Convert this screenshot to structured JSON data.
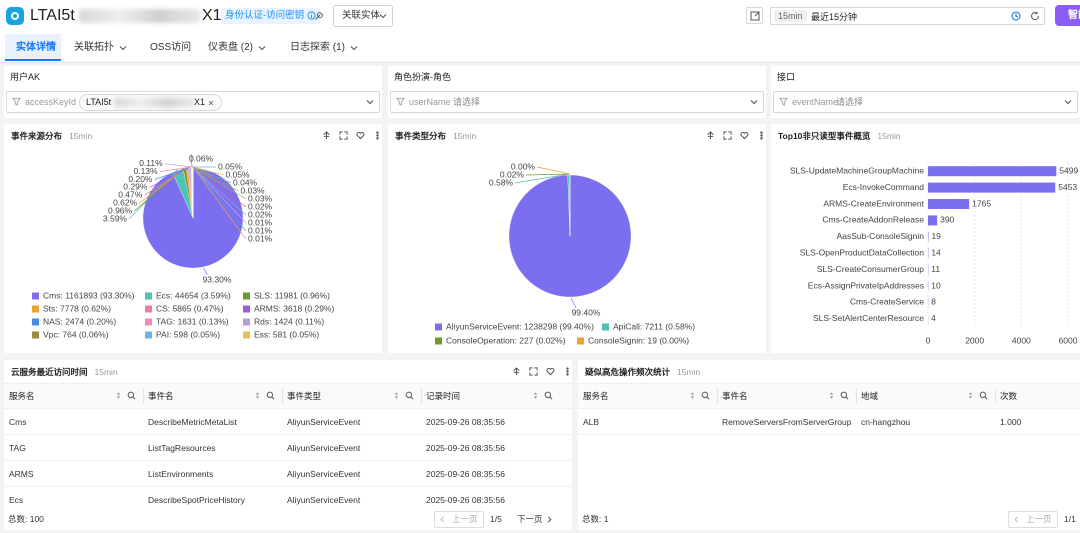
{
  "header": {
    "title": "LTAI5t",
    "title_end": "X1",
    "badge": "身份认证-访问密钥",
    "related_button": "关联实体",
    "time_chip": "15min",
    "time_range": "最近15分钟",
    "ai_button": "智能"
  },
  "tabs": [
    "实体详情",
    "关联拓扑",
    "OSS访问",
    "仪表盘 (2)",
    "日志探索 (1)"
  ],
  "filters": [
    {
      "title": "用户AK",
      "field": "accessKeyId",
      "value": "LTAI5t",
      "value_end": "X1"
    },
    {
      "title": "角色扮演-角色",
      "field": "userName",
      "placeholder": "请选择"
    },
    {
      "title": "接口",
      "field": "eventName",
      "placeholder": "请选择"
    }
  ],
  "chart_data": [
    {
      "type": "pie",
      "title": "事件来源分布",
      "subtitle": "15min",
      "categories": [
        "Cms",
        "Ecs",
        "SLS",
        "Sts",
        "CS",
        "ARMS",
        "NAS",
        "TAG",
        "Rds",
        "Vpc",
        "PAI",
        "Ess",
        null,
        null,
        null,
        null,
        null,
        null,
        null,
        null
      ],
      "values": [
        93.3,
        3.59,
        0.96,
        0.62,
        0.47,
        0.29,
        0.2,
        0.13,
        0.11,
        0.06,
        0.05,
        0.05,
        0.04,
        0.03,
        0.03,
        0.02,
        0.02,
        0.01,
        0.01,
        0.01
      ],
      "value_labels": [
        "93.30%",
        "3.59%",
        "0.96%",
        "0.62%",
        "0.47%",
        "0.29%",
        "0.20%",
        "0.13%",
        "0.11%",
        "0.06%",
        "0.05%",
        "0.05%",
        "0.04%",
        "0.03%",
        "0.03%",
        "0.02%",
        "0.02%",
        "0.01%",
        "0.01%",
        "0.01%"
      ],
      "colors": [
        "#7b6ff0",
        "#4fc1b5",
        "#6d9a2b",
        "#f0a030",
        "#ea7fa0",
        "#9a5fd8",
        "#4b8be0",
        "#f08ab8",
        "#b39ddb",
        "#a08a3c",
        "#6cb4e8",
        "#e8c05a",
        "#5fb4a0",
        "#c78c5a",
        "#8fb84e",
        "#d65f8e",
        "#7fa8d8",
        "#c8a0e8",
        "#5a9ad0",
        "#e0a070"
      ],
      "legend": [
        "Cms: 1161893 (93.30%)",
        "Ecs: 44654 (3.59%)",
        "SLS: 11981 (0.96%)",
        "Sts: 7778 (0.62%)",
        "CS: 5865 (0.47%)",
        "ARMS: 3618 (0.29%)",
        "NAS: 2474 (0.20%)",
        "TAG: 1631 (0.13%)",
        "Rds: 1424 (0.11%)",
        "Vpc: 764 (0.06%)",
        "PAI: 598 (0.05%)",
        "Ess: 581 (0.05%)"
      ]
    },
    {
      "type": "pie",
      "title": "事件类型分布",
      "subtitle": "15min",
      "categories": [
        "AliyunServiceEvent",
        "ApiCall",
        "ConsoleOperation",
        "ConsoleSignin"
      ],
      "values": [
        99.4,
        0.58,
        0.02,
        0.0
      ],
      "value_labels": [
        "99.40%",
        "0.58%",
        "0.02%",
        "0.00%"
      ],
      "colors": [
        "#7b6ff0",
        "#4fc1b5",
        "#6d9a2b",
        "#f0a030"
      ],
      "legend": [
        "AliyunServiceEvent: 1238298 (99.40%)",
        "ApiCall: 7211 (0.58%)",
        "ConsoleOperation: 227 (0.02%)",
        "ConsoleSignin: 19 (0.00%)"
      ]
    },
    {
      "type": "bar",
      "orientation": "horizontal",
      "title": "Top10非只读型事件概览",
      "subtitle": "15min",
      "categories": [
        "SLS-UpdateMachineGroupMachine",
        "Ecs-InvokeCommand",
        "ARMS-CreateEnvironment",
        "Cms-CreateAddonRelease",
        "AasSub-ConsoleSignin",
        "SLS-OpenProductDataCollection",
        "SLS-CreateConsumerGroup",
        "Ecs-AssignPrivateIpAddresses",
        "Cms-CreateService",
        "SLS-SetAlertCenterResource"
      ],
      "values": [
        5499,
        5453,
        1765,
        390,
        19,
        14,
        11,
        10,
        8,
        4
      ],
      "color": "#7b6ff0",
      "xlim": [
        0,
        6000
      ],
      "xticks": [
        0,
        2000,
        4000,
        6000
      ],
      "grid": true
    }
  ],
  "tables": [
    {
      "title": "云服务最近访问时间",
      "subtitle": "15min",
      "columns": [
        "服务名",
        "事件名",
        "事件类型",
        "记录时间"
      ],
      "rows": [
        [
          "Cms",
          "DescribeMetricMetaList",
          "AliyunServiceEvent",
          "2025-09-26 08:35:56"
        ],
        [
          "TAG",
          "ListTagResources",
          "AliyunServiceEvent",
          "2025-09-26 08:35:56"
        ],
        [
          "ARMS",
          "ListEnvironments",
          "AliyunServiceEvent",
          "2025-09-26 08:35:56"
        ],
        [
          "Ecs",
          "DescribeSpotPriceHistory",
          "AliyunServiceEvent",
          "2025-09-26 08:35:56"
        ]
      ],
      "total": "总数: 100",
      "prev": "上一页",
      "page": "1/5",
      "next": "下一页"
    },
    {
      "title": "疑似高危操作频次统计",
      "subtitle": "15min",
      "columns": [
        "服务名",
        "事件名",
        "地域",
        "次数"
      ],
      "rows": [
        [
          "ALB",
          "RemoveServersFromServerGroup",
          "cn-hangzhou",
          "1.000"
        ]
      ],
      "total": "总数: 1",
      "prev": "上一页",
      "page": "1/1"
    }
  ]
}
